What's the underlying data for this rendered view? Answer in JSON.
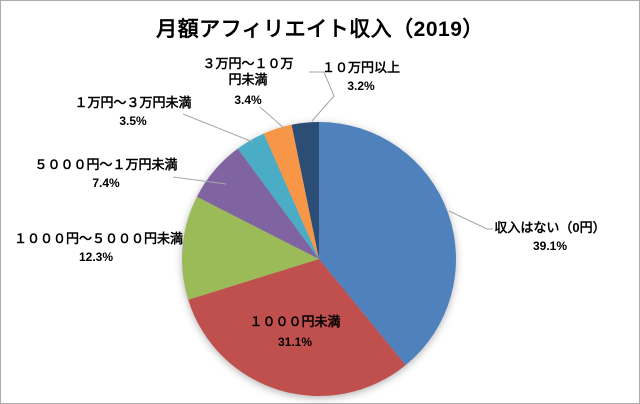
{
  "title": "月額アフィリエイト収入（2019）",
  "chart_data": {
    "type": "pie",
    "title": "月額アフィリエイト収入（2019）",
    "categories": [
      "収入はない（0円）",
      "１０００円未満",
      "１０００円～５０００円未満",
      "５０００円～１万円未満",
      "１万円～３万円未満",
      "３万円～１０万円未満",
      "１０万円以上"
    ],
    "values": [
      39.1,
      31.1,
      12.3,
      7.4,
      3.5,
      3.4,
      3.2
    ],
    "unit": "%",
    "colors": [
      "#4F81BD",
      "#C0504D",
      "#9BBB59",
      "#8064A2",
      "#4BACC6",
      "#F79646",
      "#2C4D75"
    ],
    "start_angle_deg": 0,
    "direction": "clockwise",
    "legend": "none",
    "label_style": "category name and percent, outside labels with gray leader lines",
    "leader_line_color": "#A6A6A6"
  },
  "labels": [
    {
      "name": "収入はない（0円）",
      "pct": "39.1%"
    },
    {
      "name": "１０００円未満",
      "pct": "31.1%"
    },
    {
      "name": "１０００円～５０００円未満",
      "pct": "12.3%"
    },
    {
      "name": "５０００円～１万円未満",
      "pct": "7.4%"
    },
    {
      "name": "１万円～３万円未満",
      "pct": "3.5%"
    },
    {
      "name": "３万円～１０万",
      "name2": "円未満",
      "pct": "3.4%"
    },
    {
      "name": "１０万円以上",
      "pct": "3.2%"
    }
  ]
}
